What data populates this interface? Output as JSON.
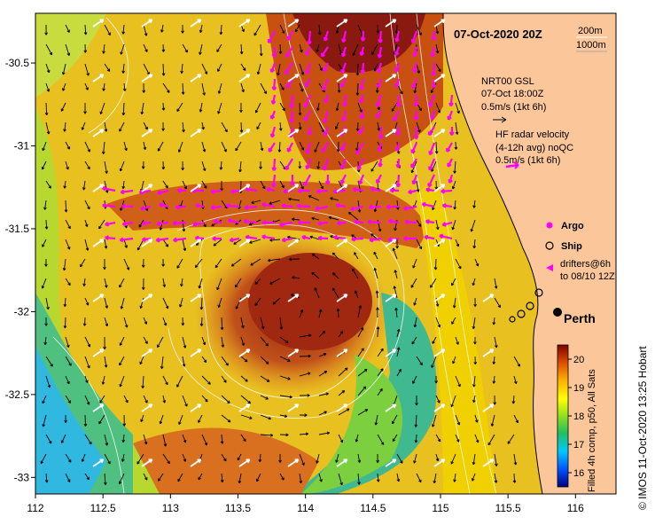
{
  "title": "07-Oct-2020 20Z",
  "depth_contours": [
    "200m",
    "1000m"
  ],
  "gsl": {
    "name": "NRT00 GSL",
    "time": "07-Oct 18:00Z",
    "scale": "0.5m/s (1kt 6h)"
  },
  "hf_radar": {
    "line1": "HF radar velocity",
    "line2": "(4-12h avg) noQC",
    "scale": "0.5m/s (1kt 6h)"
  },
  "legend": {
    "argo": "Argo",
    "ship": "Ship",
    "drifters_line1": "drifters@6h",
    "drifters_line2": "to 08/10 12Z"
  },
  "place": {
    "perth": "Perth"
  },
  "colorbar": {
    "label": "Filled 4h comp, p50, All Sats",
    "ticks": [
      "20",
      "19",
      "18",
      "17",
      "16"
    ]
  },
  "credit": "© IMOS 11-Oct-2020 13:25 Hobart",
  "colors": {
    "land": "#fbc79a",
    "gsl_arrow": "#000000",
    "hf_arrow": "#ff00ff",
    "contour": "#ffffff"
  },
  "chart_data": {
    "type": "heatmap",
    "title": "07-Oct-2020 20Z",
    "xlabel": "",
    "ylabel": "",
    "xlim": [
      112,
      116.3
    ],
    "ylim": [
      -33.1,
      -30.2
    ],
    "x_ticks": [
      "112",
      "112.5",
      "113",
      "113.5",
      "114",
      "114.5",
      "115",
      "115.5",
      "116"
    ],
    "y_ticks": [
      "-30.5",
      "-31",
      "-31.5",
      "-32",
      "-32.5",
      "-33"
    ],
    "colorbar_range": [
      15.5,
      20.5
    ],
    "colorbar_unit_label": "Filled 4h comp, p50, All Sats"
  }
}
